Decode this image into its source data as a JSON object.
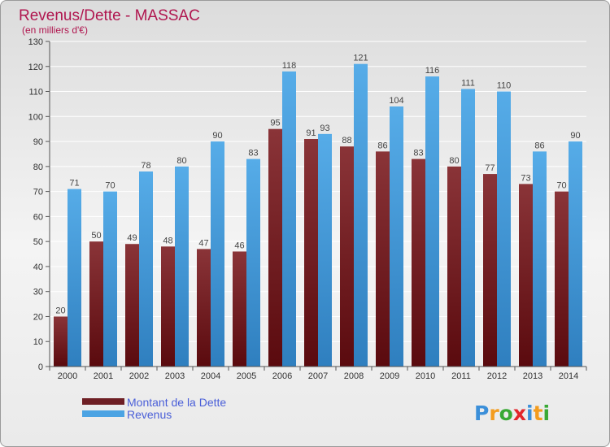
{
  "chart_data": {
    "type": "bar",
    "title": "Revenus/Dette - MASSAC",
    "subtitle": "(en milliers d'€)",
    "categories": [
      "2000",
      "2001",
      "2002",
      "2003",
      "2004",
      "2005",
      "2006",
      "2007",
      "2008",
      "2009",
      "2010",
      "2011",
      "2012",
      "2013",
      "2014"
    ],
    "series": [
      {
        "name": "Montant de la Dette",
        "values": [
          20,
          50,
          49,
          48,
          47,
          46,
          95,
          91,
          88,
          86,
          83,
          80,
          77,
          73,
          70
        ],
        "color": "#7a2a2e"
      },
      {
        "name": "Revenus",
        "values": [
          71,
          70,
          78,
          80,
          90,
          83,
          118,
          93,
          121,
          104,
          116,
          111,
          110,
          86,
          90
        ],
        "color": "#4ba3e3"
      }
    ],
    "ylim": [
      0,
      130
    ],
    "yticks": [
      0,
      10,
      20,
      30,
      40,
      50,
      60,
      70,
      80,
      90,
      100,
      110,
      120,
      130
    ],
    "grid": true,
    "legend_position": "bottom-left"
  },
  "logo": {
    "text": "Proxiti",
    "letters": [
      "P",
      "r",
      "o",
      "x",
      "i",
      "t",
      "i"
    ],
    "colors": [
      "#3b8fd9",
      "#f39c1e",
      "#39a935",
      "#e3262b",
      "#3b8fd9",
      "#f39c1e",
      "#39a935"
    ]
  }
}
